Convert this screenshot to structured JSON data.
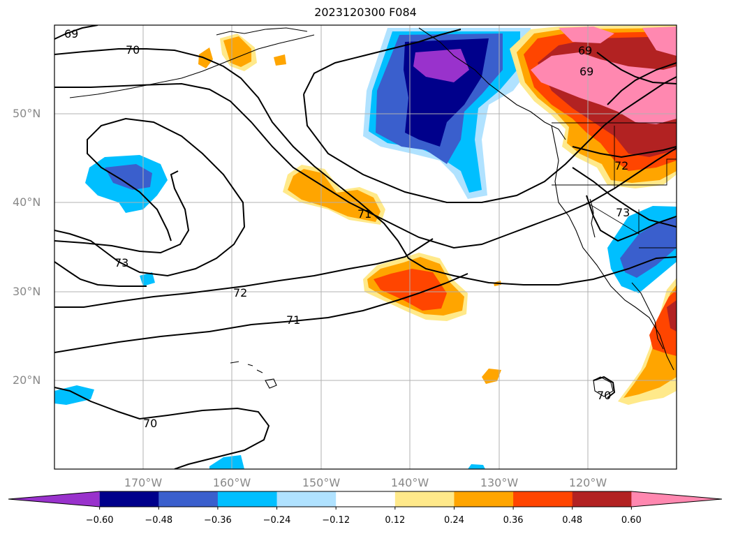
{
  "title": "2023120300 F084",
  "lat_labels": [
    "50°N",
    "40°N",
    "30°N",
    "20°N"
  ],
  "lon_labels": [
    "170°W",
    "160°W",
    "150°W",
    "140°W",
    "130°W",
    "120°W"
  ],
  "contour_labels": [
    "69",
    "70",
    "69",
    "69",
    "71",
    "72",
    "73",
    "72",
    "71",
    "73",
    "70",
    "70"
  ],
  "colorbar": {
    "ticks": [
      "−0.60",
      "−0.48",
      "−0.36",
      "−0.24",
      "−0.12",
      "0.12",
      "0.24",
      "0.36",
      "0.48",
      "0.60"
    ],
    "colors": [
      "#9932cc",
      "#00008b",
      "#3a5fcd",
      "#00bfff",
      "#b0e2ff",
      "#ffffff",
      "#ffe98a",
      "#ffa500",
      "#ff4500",
      "#b22222",
      "#ff88b0"
    ]
  }
}
